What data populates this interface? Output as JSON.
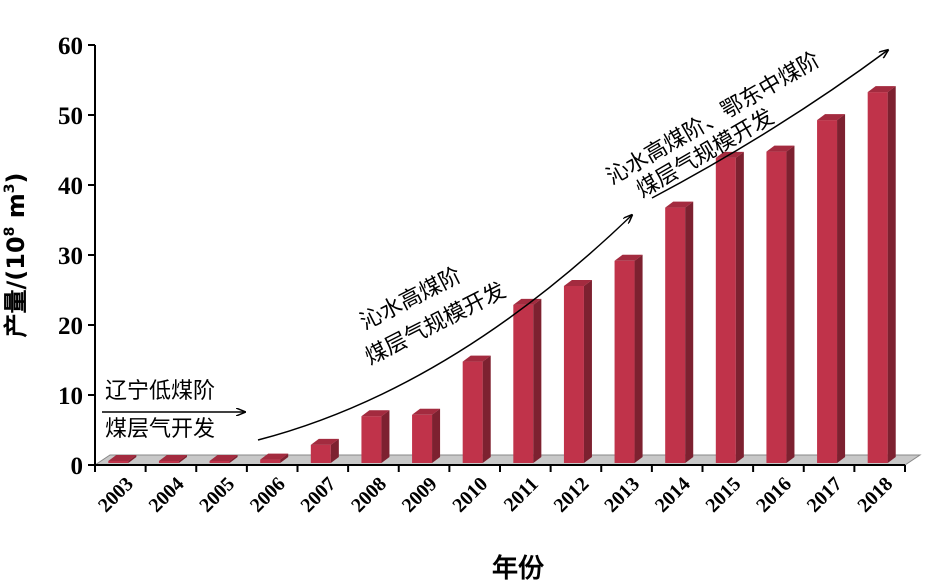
{
  "chart_data": {
    "type": "bar",
    "categories": [
      "2003",
      "2004",
      "2005",
      "2006",
      "2007",
      "2008",
      "2009",
      "2010",
      "2011",
      "2012",
      "2013",
      "2014",
      "2015",
      "2016",
      "2017",
      "2018"
    ],
    "values": [
      0.2,
      0.2,
      0.3,
      1.2,
      3.3,
      7.4,
      7.6,
      15.2,
      23.3,
      26.0,
      29.6,
      37.2,
      44.3,
      45.2,
      49.7,
      53.7
    ],
    "xlabel": "年份",
    "ylabel": "产量/(10⁸ m³)",
    "ylim": [
      0,
      60
    ],
    "yticks": [
      0,
      10,
      20,
      30,
      40,
      50,
      60
    ],
    "grid": false,
    "bar_color": "#c0334a",
    "annotations": [
      {
        "lines": [
          "辽宁低煤阶",
          "煤层气开发"
        ]
      },
      {
        "lines": [
          "沁水高煤阶",
          "煤层气规模开发"
        ]
      },
      {
        "lines": [
          "沁水高煤阶、鄂东中煤阶",
          "煤层气规模开发"
        ]
      }
    ]
  }
}
